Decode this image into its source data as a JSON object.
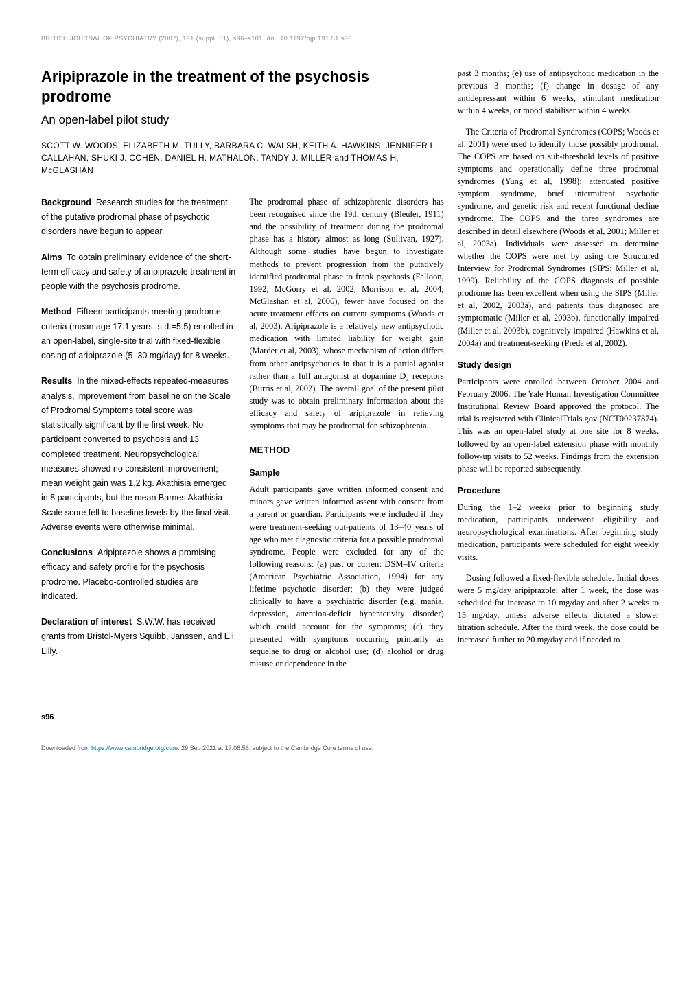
{
  "header": {
    "journal_line": "BRITISH JOURNAL OF PSYCHIATRY (2007), 191 (suppl. 51), s96–s101. doi: 10.1192/bjp.191.51.s96"
  },
  "title": {
    "main": "Aripiprazole in the treatment of the psychosis prodrome",
    "subtitle": "An open-label pilot study"
  },
  "authors": "SCOTT W. WOODS, ELIZABETH M. TULLY, BARBARA C. WALSH, KEITH A. HAWKINS, JENNIFER L. CALLAHAN, SHUKI J. COHEN, DANIEL H. MATHALON, TANDY J. MILLER and THOMAS H. McGLASHAN",
  "abstract": {
    "background": {
      "label": "Background",
      "text": "Research studies for the treatment of the putative prodromal phase of psychotic disorders have begun to appear."
    },
    "aims": {
      "label": "Aims",
      "text": "To obtain preliminary evidence of the short-term efficacy and safety of aripiprazole treatment in people with the psychosis prodrome."
    },
    "method": {
      "label": "Method",
      "text": "Fifteen participants meeting prodrome criteria (mean age 17.1 years, s.d.=5.5) enrolled in an open-label, single-site trial with fixed-flexible dosing of aripiprazole (5–30 mg/day) for 8 weeks."
    },
    "results": {
      "label": "Results",
      "text": "In the mixed-effects repeated-measures analysis, improvement from baseline on the Scale of Prodromal Symptoms total score was statistically significant by the first week. No participant converted to psychosis and 13 completed treatment. Neuropsychological measures showed no consistent improvement; mean weight gain was 1.2 kg. Akathisia emerged in 8 participants, but the mean Barnes Akathisia Scale score fell to baseline levels by the final visit. Adverse events were otherwise minimal."
    },
    "conclusions": {
      "label": "Conclusions",
      "text": "Aripiprazole shows a promising efficacy and safety profile for the psychosis prodrome. Placebo-controlled studies are indicated."
    },
    "declaration": {
      "label": "Declaration of interest",
      "text": "S.W.W. has received grants from Bristol-Myers Squibb, Janssen, and Eli Lilly."
    }
  },
  "intro": {
    "p1": "The prodromal phase of schizophrenic disorders has been recognised since the 19th century (Bleuler, 1911) and the possibility of treatment during the prodromal phase has a history almost as long (Sullivan, 1927). Although some studies have begun to investigate methods to prevent progression from the putatively identified prodromal phase to frank psychosis (Falloon, 1992; McGorry et al, 2002; Morrison et al, 2004; McGlashan et al, 2006), fewer have focused on the acute treatment effects on current symptoms (Woods et al, 2003). Aripiprazole is a relatively new antipsychotic medication with limited liability for weight gain (Marder et al, 2003), whose mechanism of action differs from other antipsychotics in that it is a partial agonist rather than a full antagonist at dopamine D₂ receptors (Burris et al, 2002). The overall goal of the present pilot study was to obtain preliminary information about the efficacy and safety of aripiprazole in relieving symptoms that may be prodromal for schizophrenia."
  },
  "method": {
    "heading": "METHOD",
    "sample": {
      "heading": "Sample",
      "p1": "Adult participants gave written informed consent and minors gave written informed assent with consent from a parent or guardian. Participants were included if they were treatment-seeking out-patients of 13–40 years of age who met diagnostic criteria for a possible prodromal syndrome. People were excluded for any of the following reasons: (a) past or current DSM–IV criteria (American Psychiatric Association, 1994) for any lifetime psychotic disorder; (b) they were judged clinically to have a psychiatric disorder (e.g. mania, depression, attention-deficit hyperactivity disorder) which could account for the symptoms; (c) they presented with symptoms occurring primarily as sequelae to drug or alcohol use; (d) alcohol or drug misuse or dependence in the"
    }
  },
  "right_column": {
    "p1": "past 3 months; (e) use of antipsychotic medication in the previous 3 months; (f) change in dosage of any antidepressant within 6 weeks, stimulant medication within 4 weeks, or mood stabiliser within 4 weeks.",
    "p2": "The Criteria of Prodromal Syndromes (COPS; Woods et al, 2001) were used to identify those possibly prodromal. The COPS are based on sub-threshold levels of positive symptoms and operationally define three prodromal syndromes (Yung et al, 1998): attenuated positive symptom syndrome, brief intermittent psychotic syndrome, and genetic risk and recent functional decline syndrome. The COPS and the three syndromes are described in detail elsewhere (Woods et al, 2001; Miller et al, 2003a). Individuals were assessed to determine whether the COPS were met by using the Structured Interview for Prodromal Syndromes (SIPS; Miller et al, 1999). Reliability of the COPS diagnosis of possible prodrome has been excellent when using the SIPS (Miller et al, 2002, 2003a), and patients thus diagnosed are symptomatic (Miller et al, 2003b), functionally impaired (Miller et al, 2003b), cognitively impaired (Hawkins et al, 2004a) and treatment-seeking (Preda et al, 2002).",
    "study_design": {
      "heading": "Study design",
      "p1": "Participants were enrolled between October 2004 and February 2006. The Yale Human Investigation Committee Institutional Review Board approved the protocol. The trial is registered with ClinicalTrials.gov (NCT00237874). This was an open-label study at one site for 8 weeks, followed by an open-label extension phase with monthly follow-up visits to 52 weeks. Findings from the extension phase will be reported subsequently."
    },
    "procedure": {
      "heading": "Procedure",
      "p1": "During the 1–2 weeks prior to beginning study medication, participants underwent eligibility and neuropsychological examinations. After beginning study medication, participants were scheduled for eight weekly visits.",
      "p2": "Dosing followed a fixed-flexible schedule. Initial doses were 5 mg/day aripiprazole; after 1 week, the dose was scheduled for increase to 10 mg/day and after 2 weeks to 15 mg/day, unless adverse effects dictated a slower titration schedule. After the third week, the dose could be increased further to 20 mg/day and if needed to"
    }
  },
  "page_number": "s96",
  "footer": {
    "prefix": "Downloaded from ",
    "link": "https://www.cambridge.org/core",
    "suffix": ". 29 Sep 2021 at 17:08:56, subject to the Cambridge Core terms of use."
  }
}
